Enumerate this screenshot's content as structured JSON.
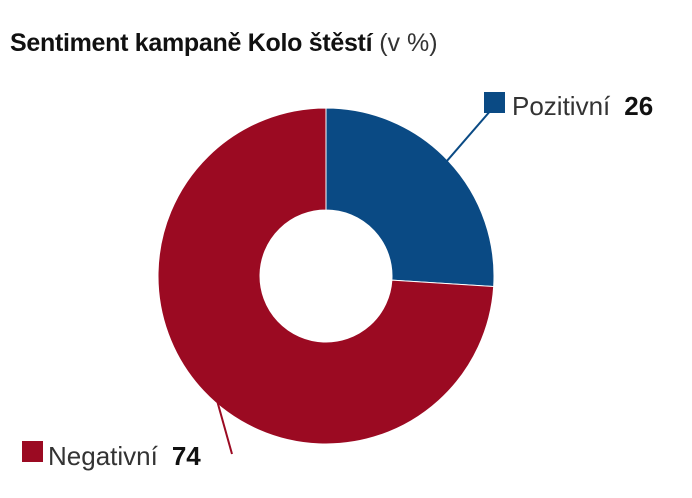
{
  "title": {
    "main": "Sentiment kampaně Kolo štěstí",
    "unit": "(v %)"
  },
  "chart_data": {
    "type": "pie",
    "donut": true,
    "title": "Sentiment kampaně Kolo štěstí",
    "unit": "(v %)",
    "categories": [
      "Pozitivní",
      "Negativní"
    ],
    "values": [
      26,
      74
    ],
    "colors": [
      "#0a4a84",
      "#9b0a22"
    ],
    "start_angle": "top, clockwise",
    "legend_placement": "outside with leader lines"
  }
}
